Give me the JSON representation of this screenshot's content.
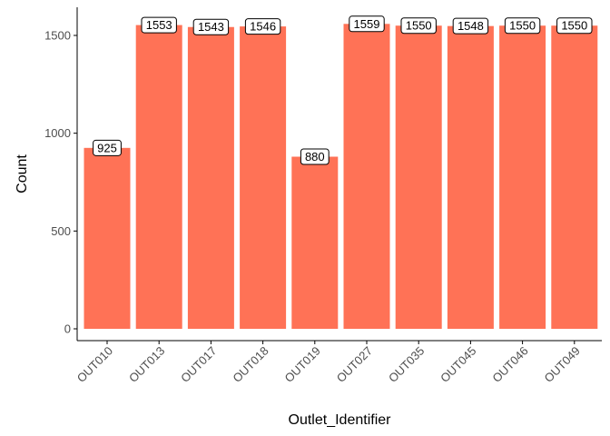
{
  "chart_data": {
    "type": "bar",
    "xlabel": "Outlet_Identifier",
    "ylabel": "Count",
    "categories": [
      "OUT010",
      "OUT013",
      "OUT017",
      "OUT018",
      "OUT019",
      "OUT027",
      "OUT035",
      "OUT045",
      "OUT046",
      "OUT049"
    ],
    "values": [
      925,
      1553,
      1543,
      1546,
      880,
      1559,
      1550,
      1548,
      1550,
      1550
    ],
    "ylim": [
      0,
      1650
    ],
    "yticks": [
      0,
      500,
      1000,
      1500
    ],
    "bar_color": "#FF7256",
    "grid": false,
    "data_labels": true
  }
}
